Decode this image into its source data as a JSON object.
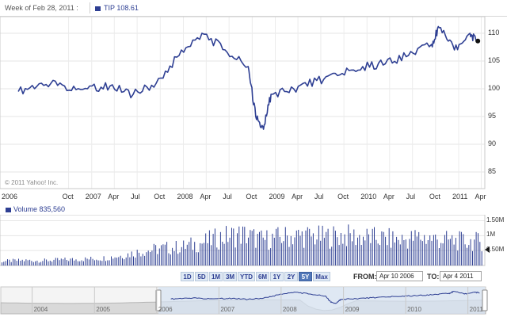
{
  "header": {
    "week_label": "Week of Feb 28, 2011 :",
    "ticker_label": "TIP 108.61",
    "ticker_color": "#2e3f93"
  },
  "main_chart": {
    "copyright": "© 2011 Yahoo! Inc.",
    "y_ticks": [
      "110",
      "105",
      "100",
      "95",
      "90",
      "85"
    ],
    "x_ticks": [
      "2006",
      "Oct",
      "2007",
      "Apr",
      "Jul",
      "Oct",
      "2008",
      "Apr",
      "Jul",
      "Oct",
      "2009",
      "Apr",
      "Jul",
      "Oct",
      "2010",
      "Apr",
      "Jul",
      "Oct",
      "2011",
      "Apr"
    ],
    "line_color": "#2e3f93"
  },
  "volume": {
    "label": "Volume 835,560",
    "y_ticks": [
      "1.50M",
      "1M",
      "0.50M"
    ]
  },
  "range_buttons": [
    "1D",
    "5D",
    "1M",
    "3M",
    "YTD",
    "6M",
    "1Y",
    "2Y",
    "5Y",
    "Max"
  ],
  "selected_range": "5Y",
  "dates": {
    "from_label": "FROM:",
    "from_value": "Apr 10 2006",
    "to_label": "TO:",
    "to_value": "Apr 4 2011"
  },
  "navigator": {
    "years": [
      "2004",
      "2005",
      "2006",
      "2007",
      "2008",
      "2009",
      "2010",
      "2011"
    ]
  },
  "chart_data": {
    "type": "line",
    "x": [
      "2006-03",
      "2006-06",
      "2006-09",
      "2006-12",
      "2007-03",
      "2007-06",
      "2007-09",
      "2007-12",
      "2008-03",
      "2008-06",
      "2008-09",
      "2008-10",
      "2008-11",
      "2008-12",
      "2009-03",
      "2009-06",
      "2009-09",
      "2009-12",
      "2010-03",
      "2010-06",
      "2010-09",
      "2010-10",
      "2010-12",
      "2011-02",
      "2011-03"
    ],
    "series": [
      {
        "name": "TIP",
        "values": [
          99.5,
          101,
          100.5,
          100,
          100.5,
          99,
          101,
          106,
          110,
          107,
          104,
          95,
          92.7,
          99,
          100,
          101.5,
          102.5,
          104,
          104.5,
          106,
          108,
          111,
          107,
          110,
          108.6
        ]
      }
    ],
    "ylim": [
      82,
      113
    ],
    "volume": {
      "values_m": [
        0.15,
        0.18,
        0.17,
        0.2,
        0.22,
        0.25,
        0.35,
        0.5,
        0.6,
        0.65,
        0.8,
        1.0,
        1.1,
        0.9,
        1.0,
        1.05,
        1.0,
        1.05,
        1.0,
        0.95,
        0.9,
        1.0,
        0.9,
        0.85,
        0.84
      ],
      "ylim": [
        0,
        1.7
      ]
    }
  }
}
